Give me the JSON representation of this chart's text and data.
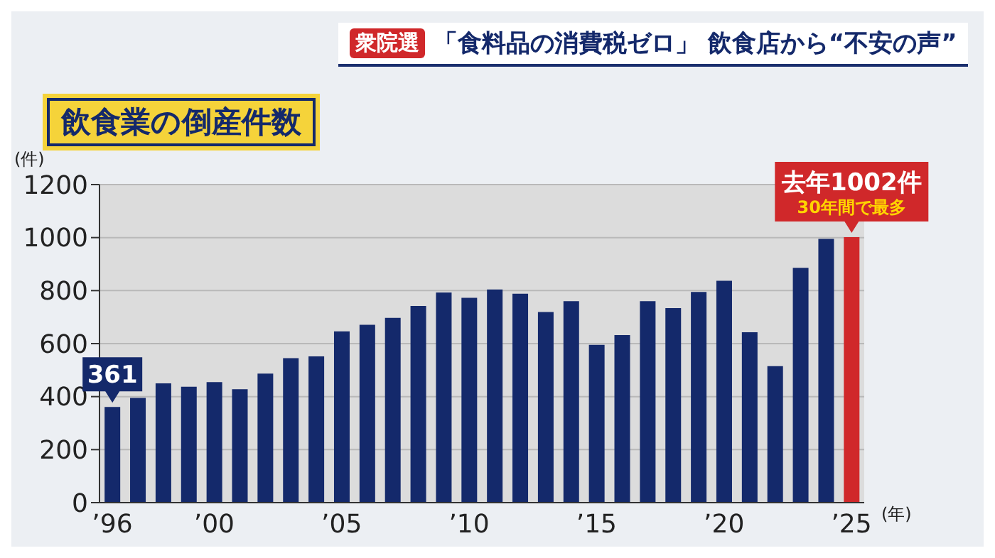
{
  "chart_data": {
    "type": "bar",
    "title": "「食料品の消費税ゼロ」 飲食店から“不安の声”",
    "subtitle": "飲食業の倒産件数",
    "ylabel": "(件)",
    "xlabel": "(年)",
    "annotations": [
      "衆院選",
      {
        "text": "30年間で最多",
        "x": "’25",
        "y": 1002
      }
    ],
    "categories": [
      "’96",
      null,
      null,
      null,
      "’00",
      null,
      null,
      null,
      null,
      "’05",
      null,
      null,
      null,
      null,
      "’10",
      null,
      null,
      null,
      null,
      "’15",
      null,
      null,
      null,
      null,
      "’20",
      null,
      null,
      null,
      null,
      "’25"
    ],
    "values": [
      361,
      395,
      450,
      437,
      455,
      428,
      487,
      545,
      552,
      646,
      671,
      697,
      742,
      793,
      773,
      804,
      788,
      719,
      760,
      595,
      632,
      760,
      734,
      795,
      837,
      643,
      515,
      886,
      995,
      1002
    ],
    "colors": [
      "#14296b",
      "#14296b",
      "#14296b",
      "#14296b",
      "#14296b",
      "#14296b",
      "#14296b",
      "#14296b",
      "#14296b",
      "#14296b",
      "#14296b",
      "#14296b",
      "#14296b",
      "#14296b",
      "#14296b",
      "#14296b",
      "#14296b",
      "#14296b",
      "#14296b",
      "#14296b",
      "#14296b",
      "#14296b",
      "#14296b",
      "#14296b",
      "#14296b",
      "#14296b",
      "#14296b",
      "#14296b",
      "#14296b",
      "#d0282a"
    ],
    "value_labels": [
      "361",
      null,
      null,
      null,
      null,
      null,
      null,
      null,
      null,
      null,
      null,
      null,
      null,
      null,
      null,
      null,
      null,
      null,
      null,
      null,
      null,
      null,
      null,
      null,
      null,
      null,
      null,
      null,
      null,
      "去年1002件"
    ],
    "ylim": [
      0,
      1200
    ],
    "yticks": [
      0,
      200,
      400,
      600,
      800,
      1000,
      1200
    ],
    "grid": "y",
    "legend": false
  }
}
